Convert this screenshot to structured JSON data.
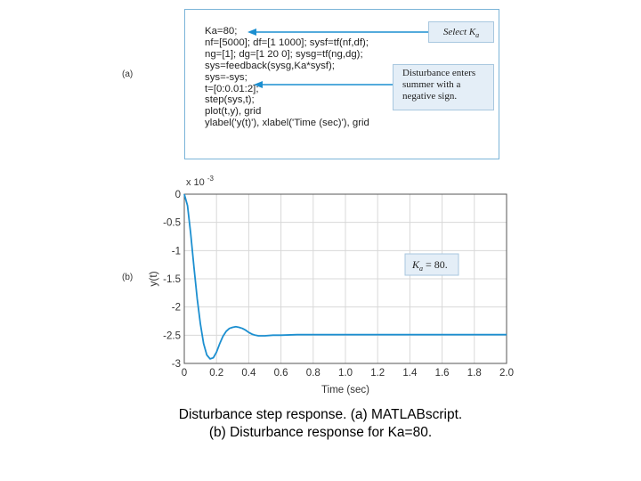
{
  "panel_a": {
    "label": "(a)",
    "code_lines": [
      "Ka=80;",
      "nf=[5000]; df=[1 1000]; sysf=tf(nf,df);",
      "ng=[1]; dg=[1 20 0]; sysg=tf(ng,dg);",
      "sys=feedback(sysg,Ka*sysf);",
      "sys=-sys;",
      "t=[0:0.01:2];",
      "step(sys,t);",
      "plot(t,y), grid",
      "ylabel('y(t)'), xlabel('Time (sec)'), grid"
    ],
    "callout_ka": "Select K",
    "callout_ka_sub": "a",
    "callout_disturbance": [
      "Disturbance enters",
      "summer with a",
      "negative sign."
    ],
    "accent_color": "#1c8fd0"
  },
  "panel_b": {
    "label": "(b)",
    "annotation": "K",
    "annotation_sub": "a",
    "annotation_value": "= 80."
  },
  "chart_data": {
    "type": "line",
    "xlabel": "Time (sec)",
    "ylabel": "y(t)",
    "y_multiplier": "x 10",
    "y_multiplier_exp": "-3",
    "xlim": [
      0,
      2.0
    ],
    "ylim": [
      -3,
      0
    ],
    "x_ticks": [
      "0",
      "0.2",
      "0.4",
      "0.6",
      "0.8",
      "1.0",
      "1.2",
      "1.4",
      "1.6",
      "1.8",
      "2.0"
    ],
    "y_ticks": [
      "0",
      "-0.5",
      "-1",
      "-1.5",
      "-2",
      "-2.5",
      "-3"
    ],
    "grid": true,
    "line_color": "#1c8fd0",
    "series": [
      {
        "x": [
          0,
          0.02,
          0.04,
          0.06,
          0.08,
          0.1,
          0.12,
          0.14,
          0.16,
          0.18,
          0.2,
          0.22,
          0.24,
          0.26,
          0.28,
          0.3,
          0.32,
          0.34,
          0.36,
          0.38,
          0.4,
          0.42,
          0.44,
          0.46,
          0.48,
          0.5,
          0.55,
          0.6,
          0.7,
          0.8,
          1.0,
          1.2,
          1.4,
          1.6,
          1.8,
          2.0
        ],
        "y": [
          0,
          -0.2,
          -0.7,
          -1.3,
          -1.85,
          -2.3,
          -2.65,
          -2.85,
          -2.92,
          -2.9,
          -2.8,
          -2.65,
          -2.52,
          -2.43,
          -2.38,
          -2.36,
          -2.35,
          -2.36,
          -2.38,
          -2.41,
          -2.45,
          -2.48,
          -2.5,
          -2.51,
          -2.51,
          -2.51,
          -2.5,
          -2.5,
          -2.49,
          -2.49,
          -2.49,
          -2.49,
          -2.49,
          -2.49,
          -2.49,
          -2.49
        ]
      }
    ]
  },
  "caption": {
    "line1": "Disturbance step response. (a) MATLABscript.",
    "line2": "(b) Disturbance response for Ka=80."
  }
}
